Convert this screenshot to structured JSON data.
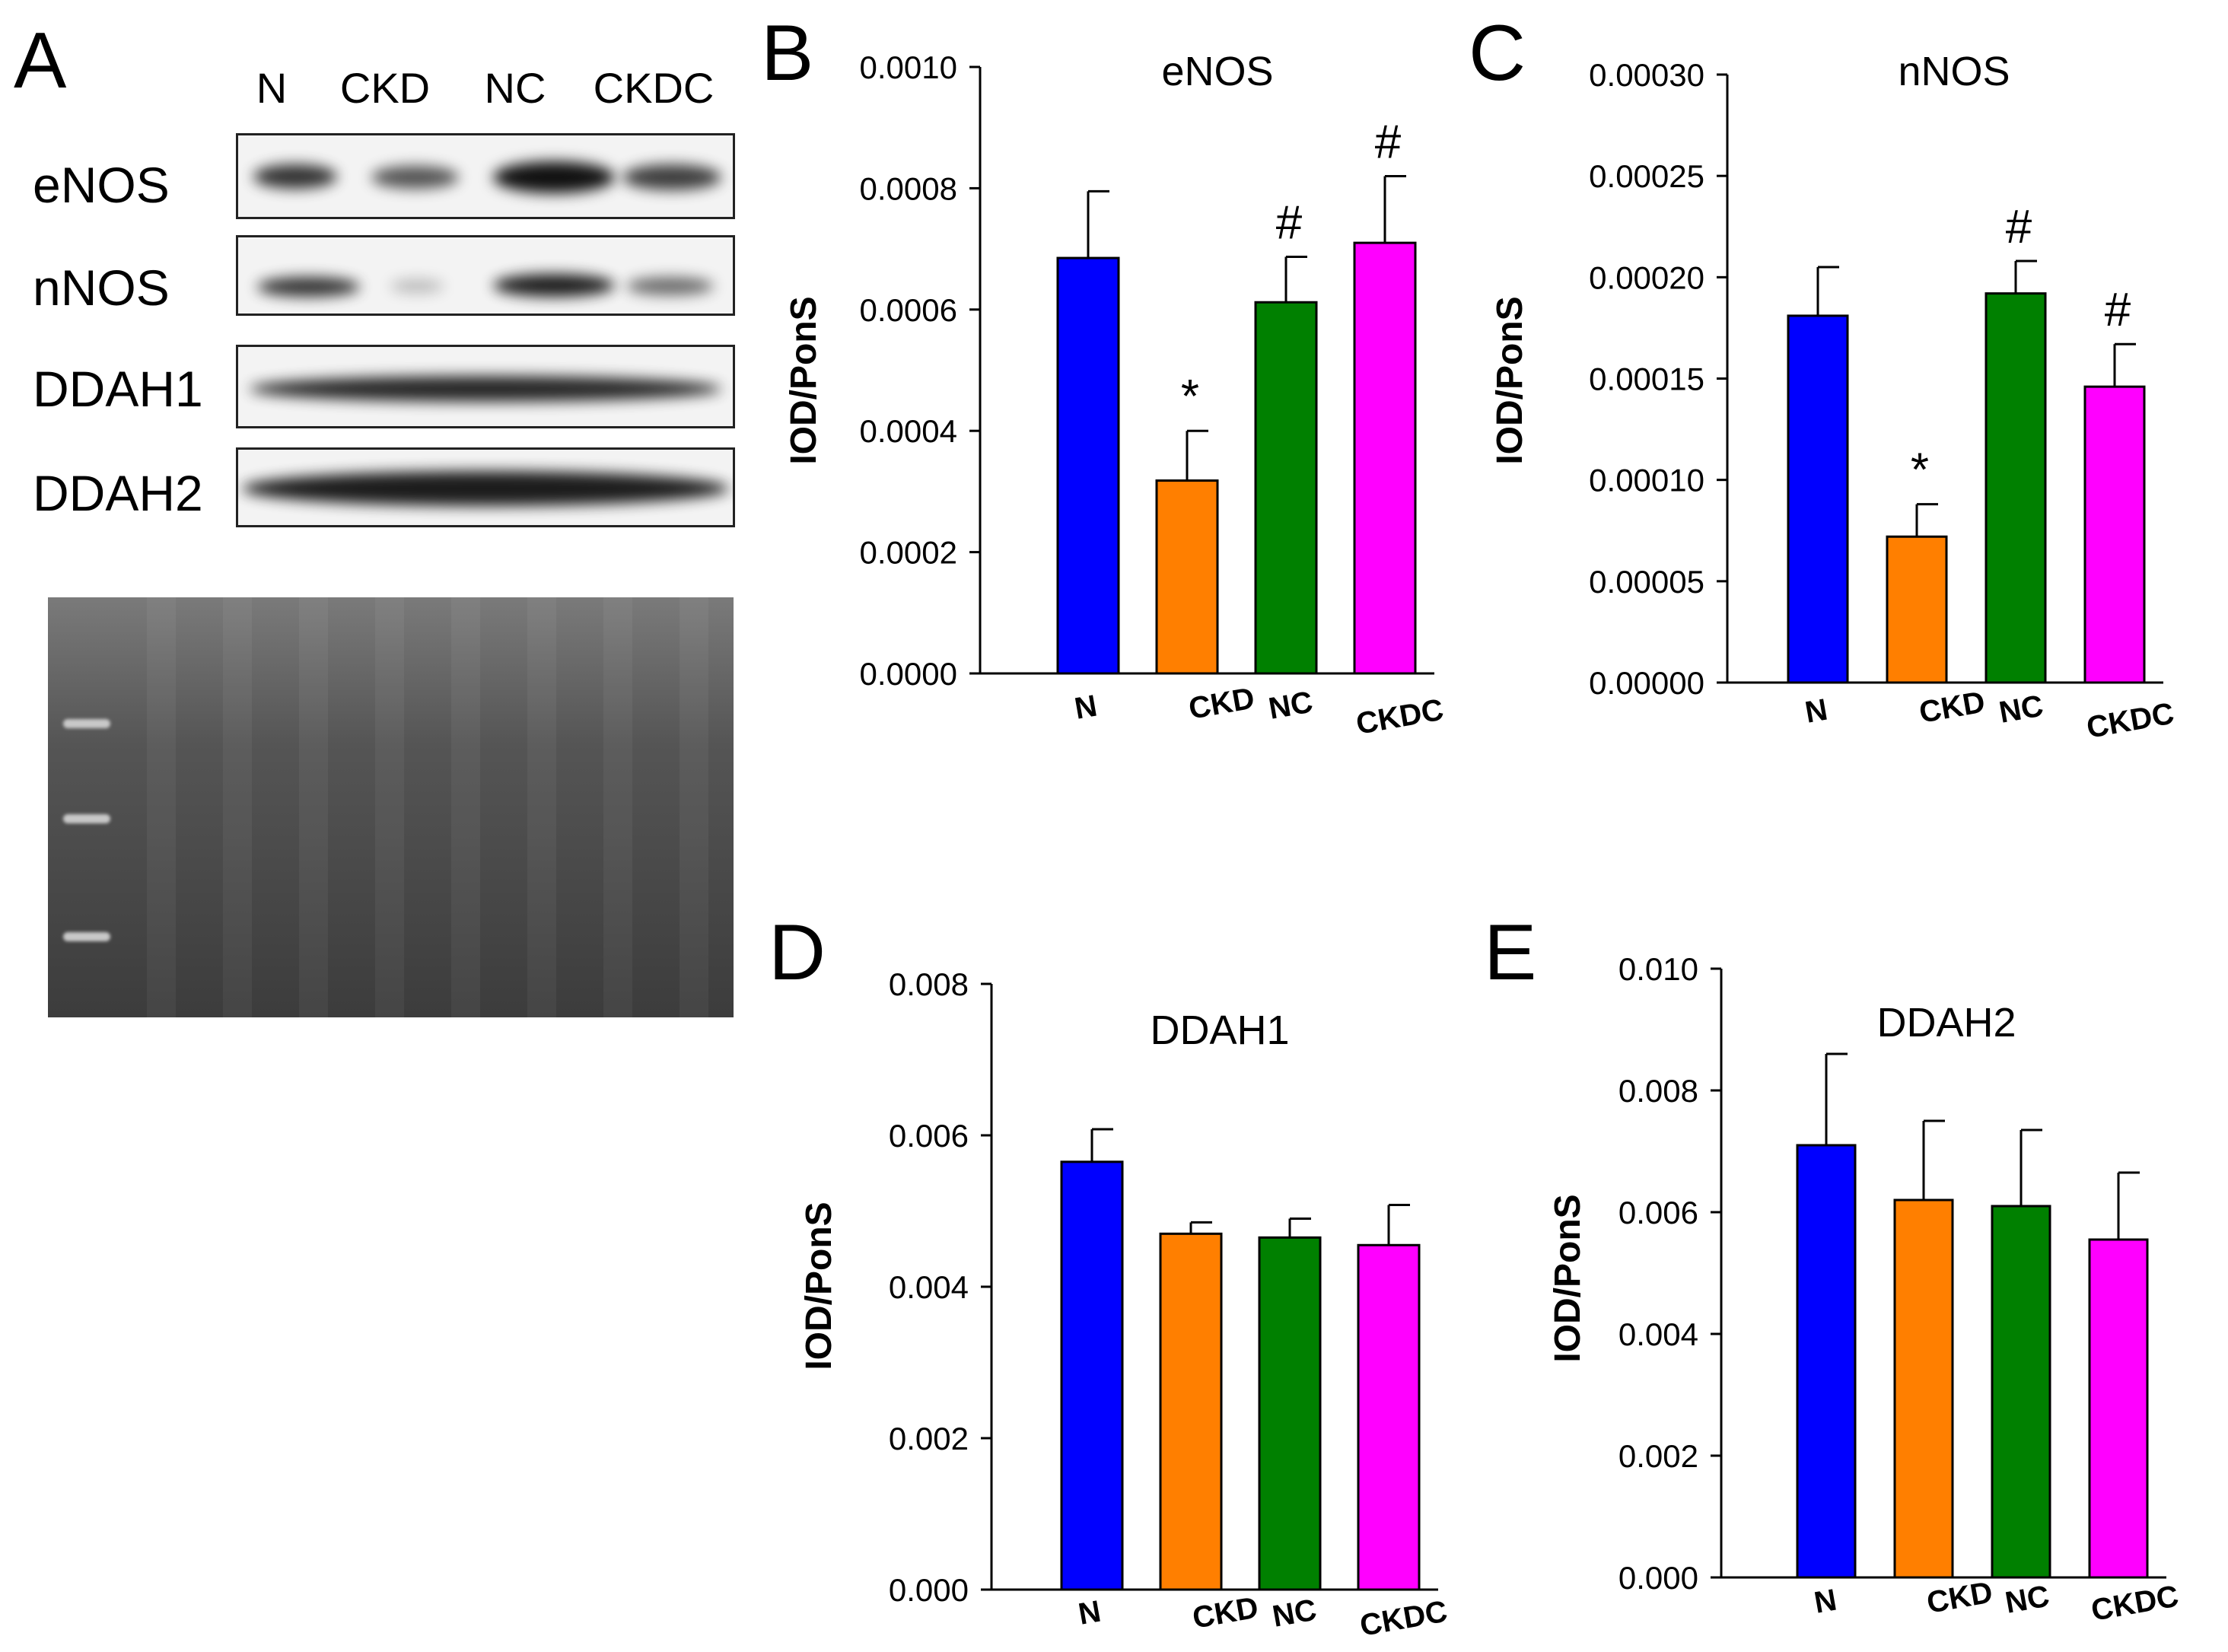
{
  "panel_letters": [
    "A",
    "B",
    "C",
    "D",
    "E"
  ],
  "blot": {
    "lanes": [
      "N",
      "CKD",
      "NC",
      "CKDC"
    ],
    "rows": [
      "eNOS",
      "nNOS",
      "DDAH1",
      "DDAH2"
    ]
  },
  "chart_data": [
    {
      "panel": "B",
      "type": "bar",
      "title": "eNOS",
      "ylabel": "IOD/PonS",
      "xlabel": "",
      "categories": [
        "N",
        "CKD",
        "NC",
        "CKDC"
      ],
      "values": [
        0.000685,
        0.000318,
        0.000612,
        0.00071
      ],
      "errors": [
        0.00011,
        8.2e-05,
        7.5e-05,
        0.00011
      ],
      "annotations": [
        "",
        "*",
        "#",
        "#"
      ],
      "ylim": [
        0,
        0.001
      ],
      "yticks": [
        "0.0000",
        "0.0002",
        "0.0004",
        "0.0006",
        "0.0008",
        "0.0010"
      ],
      "colors": [
        "#0000ff",
        "#ff7f00",
        "#008000",
        "#ff00ff"
      ]
    },
    {
      "panel": "C",
      "type": "bar",
      "title": "nNOS",
      "ylabel": "IOD/PonS",
      "xlabel": "",
      "categories": [
        "N",
        "CKD",
        "NC",
        "CKDC"
      ],
      "values": [
        0.000181,
        7.2e-05,
        0.000192,
        0.000146
      ],
      "errors": [
        2.4e-05,
        1.6e-05,
        1.6e-05,
        2.1e-05
      ],
      "annotations": [
        "",
        "*",
        "#",
        "#"
      ],
      "ylim": [
        0,
        0.0003
      ],
      "yticks": [
        "0.00000",
        "0.00005",
        "0.00010",
        "0.00015",
        "0.00020",
        "0.00025",
        "0.00030"
      ],
      "colors": [
        "#0000ff",
        "#ff7f00",
        "#008000",
        "#ff00ff"
      ]
    },
    {
      "panel": "D",
      "type": "bar",
      "title": "DDAH1",
      "ylabel": "IOD/PonS",
      "xlabel": "",
      "categories": [
        "N",
        "CKD",
        "NC",
        "CKDC"
      ],
      "values": [
        0.00565,
        0.0047,
        0.00465,
        0.00455
      ],
      "errors": [
        0.00043,
        0.00015,
        0.00025,
        0.00053
      ],
      "annotations": [
        "",
        "",
        "",
        ""
      ],
      "ylim": [
        0,
        0.008
      ],
      "yticks": [
        "0.000",
        "0.002",
        "0.004",
        "0.006",
        "0.008"
      ],
      "colors": [
        "#0000ff",
        "#ff7f00",
        "#008000",
        "#ff00ff"
      ]
    },
    {
      "panel": "E",
      "type": "bar",
      "title": "DDAH2",
      "ylabel": "IOD/PonS",
      "xlabel": "",
      "categories": [
        "N",
        "CKD",
        "NC",
        "CKDC"
      ],
      "values": [
        0.0071,
        0.0062,
        0.0061,
        0.00555
      ],
      "errors": [
        0.0015,
        0.0013,
        0.00125,
        0.0011
      ],
      "annotations": [
        "",
        "",
        "",
        ""
      ],
      "ylim": [
        0,
        0.01
      ],
      "yticks": [
        "0.000",
        "0.002",
        "0.004",
        "0.006",
        "0.008",
        "0.010"
      ],
      "colors": [
        "#0000ff",
        "#ff7f00",
        "#008000",
        "#ff00ff"
      ]
    }
  ]
}
